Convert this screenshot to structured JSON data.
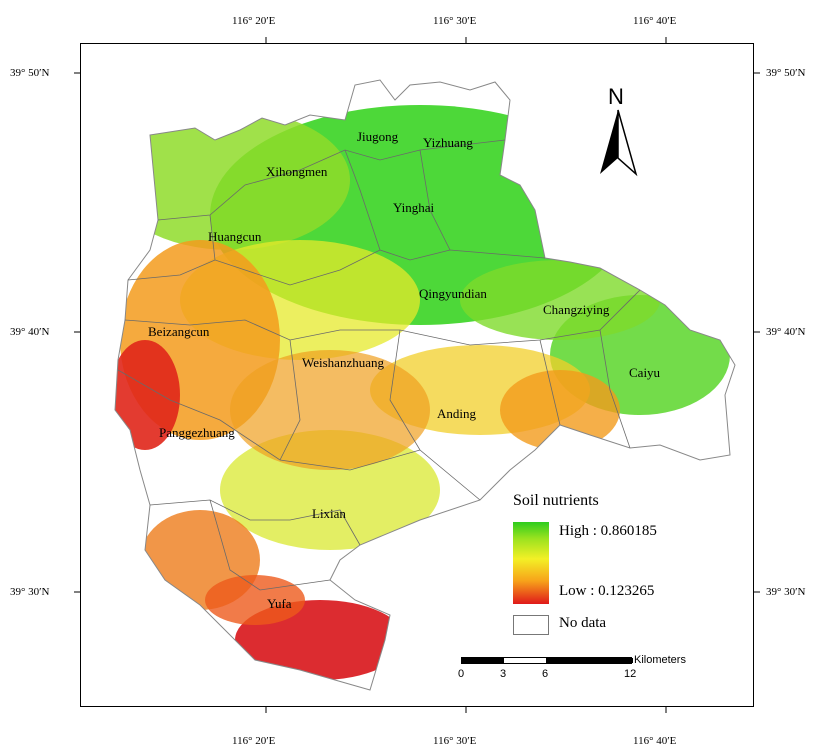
{
  "coords": {
    "top": [
      "116° 20′E",
      "116° 30′E",
      "116° 40′E"
    ],
    "bottom": [
      "116° 20′E",
      "116° 30′E",
      "116° 40′E"
    ],
    "left": [
      "39° 50′N",
      "39° 40′N",
      "39° 30′N"
    ],
    "right": [
      "39° 50′N",
      "39° 40′N",
      "39° 30′N"
    ]
  },
  "towns": {
    "jiugong": "Jiugong",
    "yizhuang": "Yizhuang",
    "xihongmen": "Xihongmen",
    "yinghai": "Yinghai",
    "huangcun": "Huangcun",
    "qingyundian": "Qingyundian",
    "changziying": "Changziying",
    "beizangcun": "Beizangcun",
    "weishanzhuang": "Weishanzhuang",
    "caiyu": "Caiyu",
    "anding": "Anding",
    "panggezhuang": "Panggezhuang",
    "lixian": "Lixian",
    "yufa": "Yufa"
  },
  "legend": {
    "title": "Soil nutrients",
    "high": "High : 0.860185",
    "low": "Low : 0.123265",
    "nodata": "No data",
    "colors": {
      "high": "#2ecc1e",
      "mid": "#f3f026",
      "low": "#e0191a"
    }
  },
  "north_arrow": "N",
  "scale": {
    "unit": "Kilometers",
    "ticks": [
      "0",
      "3",
      "6",
      "12"
    ]
  }
}
